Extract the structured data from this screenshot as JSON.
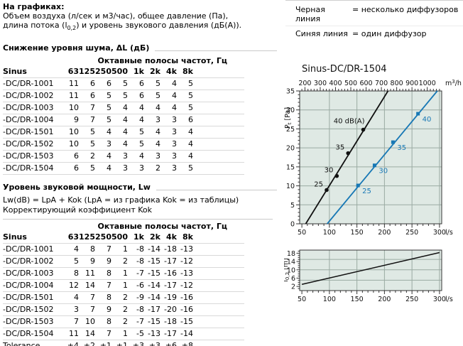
{
  "intro": {
    "title": "На графиках:",
    "line1": "Объем воздуха (л/сек и м3/час), общее давление (Па),",
    "line2_pre": "длина потока (l",
    "line2_sub": "0,2",
    "line2_post": ") и уровень звукового давления (дБ(А))."
  },
  "legend": {
    "rows": [
      {
        "label": "Черная линия",
        "value": "= несколько диффузоров"
      },
      {
        "label": "Синяя линия",
        "value": "= один диффузор"
      }
    ]
  },
  "tables": [
    {
      "title": "Снижение уровня шума, ΔL (дБ)",
      "octave_header": "Октавные полосы частот, Гц",
      "col_label": "Sinus",
      "columns": [
        "63",
        "125",
        "250",
        "500",
        "1k",
        "2k",
        "4k",
        "8k"
      ],
      "rows": [
        {
          "label": "-DC/DR-1001",
          "values": [
            11,
            6,
            6,
            5,
            6,
            5,
            4,
            5
          ]
        },
        {
          "label": "-DC/DR-1002",
          "values": [
            11,
            6,
            5,
            5,
            6,
            5,
            4,
            5
          ]
        },
        {
          "label": "-DC/DR-1003",
          "values": [
            10,
            7,
            5,
            4,
            4,
            4,
            4,
            5
          ]
        },
        {
          "label": "-DC/DR-1004",
          "values": [
            9,
            7,
            5,
            4,
            4,
            3,
            3,
            6
          ]
        },
        {
          "label": "-DC/DR-1501",
          "values": [
            10,
            5,
            4,
            4,
            5,
            4,
            3,
            4
          ]
        },
        {
          "label": "-DC/DR-1502",
          "values": [
            10,
            5,
            3,
            4,
            5,
            4,
            3,
            4
          ]
        },
        {
          "label": "-DC/DR-1503",
          "values": [
            6,
            2,
            4,
            3,
            4,
            3,
            3,
            4
          ]
        },
        {
          "label": "-DC/DR-1504",
          "values": [
            6,
            5,
            4,
            3,
            3,
            2,
            3,
            5
          ]
        }
      ]
    },
    {
      "title": "Уровень звуковой мощности, Lw",
      "note1": "Lw(dB) = LpA + Kok (LpA = из графика Kok = из таблицы)",
      "note2": "Корректирующий коэффициент Kok",
      "octave_header": "Октавные полосы частот, Гц",
      "col_label": "Sinus",
      "columns": [
        "63",
        "125",
        "250",
        "500",
        "1k",
        "2k",
        "4k",
        "8k"
      ],
      "rows": [
        {
          "label": "-DC/DR-1001",
          "values": [
            4,
            8,
            7,
            1,
            -8,
            -14,
            -18,
            -13
          ]
        },
        {
          "label": "-DC/DR-1002",
          "values": [
            5,
            9,
            9,
            2,
            -8,
            -15,
            -17,
            -12
          ]
        },
        {
          "label": "-DC/DR-1003",
          "values": [
            8,
            11,
            8,
            1,
            -7,
            -15,
            -16,
            -13
          ]
        },
        {
          "label": "-DC/DR-1004",
          "values": [
            12,
            14,
            7,
            1,
            -6,
            -14,
            -17,
            -12
          ]
        },
        {
          "label": "-DC/DR-1501",
          "values": [
            4,
            7,
            8,
            2,
            -9,
            -14,
            -19,
            -16
          ]
        },
        {
          "label": "-DC/DR-1502",
          "values": [
            3,
            7,
            9,
            2,
            -8,
            -17,
            -20,
            -16
          ]
        },
        {
          "label": "-DC/DR-1503",
          "values": [
            7,
            10,
            8,
            2,
            -7,
            -15,
            -18,
            -15
          ]
        },
        {
          "label": "-DC/DR-1504",
          "values": [
            11,
            14,
            7,
            1,
            -5,
            -13,
            -17,
            -14
          ]
        },
        {
          "label": "Tolerance",
          "values": [
            "±4",
            "±2",
            "±1",
            "±1",
            "±3",
            "±3",
            "±6",
            "±8"
          ]
        }
      ]
    }
  ],
  "colors": {
    "plot_bg": "#dfe9e4",
    "grid": "#9aaaa2",
    "axis": "#333333",
    "line_black": "#111111",
    "line_blue": "#1878b5"
  },
  "chart_data": [
    {
      "type": "line",
      "title": "Sinus-DC/DR-1504",
      "x_axis_bottom": {
        "label": "l/s",
        "range": [
          46,
          304
        ],
        "ticks": [
          50,
          100,
          150,
          200,
          250,
          300
        ],
        "minor_step": 10
      },
      "x_axis_top": {
        "label": "m3/h",
        "label_parts": {
          "base": "m",
          "sup": "3",
          "rest": "/h"
        },
        "ticks": [
          200,
          300,
          400,
          500,
          600,
          700,
          800,
          900,
          1000
        ],
        "minor_step": 20,
        "note": "top axis = bottom axis × 3.6"
      },
      "y_axis": {
        "label": "Pt [Pa]",
        "label_parts": {
          "base": "P",
          "sub": "t",
          "rest": " [Pa]"
        },
        "range": [
          0,
          35
        ],
        "ticks": [
          0,
          5,
          10,
          15,
          20,
          25,
          30,
          35
        ],
        "minor_step": 1
      },
      "grid_x": [
        100,
        150,
        200,
        250,
        300
      ],
      "grid_y": [
        5,
        10,
        15,
        20,
        25,
        30
      ],
      "point_labels_unit": "dB(A)",
      "series": [
        {
          "name": "несколько диффузоров",
          "color": "#111111",
          "marker": "circle",
          "label_side": "left",
          "line": [
            [
              57,
              0
            ],
            [
              206.5,
              35
            ]
          ],
          "points": [
            {
              "x": 95,
              "y": 8.9,
              "label": "25"
            },
            {
              "x": 113.5,
              "y": 12.6,
              "label": "30"
            },
            {
              "x": 134,
              "y": 18.6,
              "label": "35"
            },
            {
              "x": 161.5,
              "y": 24.8,
              "label": "40 dB(A)",
              "dx": 2,
              "dy": -9
            }
          ]
        },
        {
          "name": "один диффузор",
          "color": "#1878b5",
          "marker": "square",
          "label_side": "right",
          "line": [
            [
              96,
              0
            ],
            [
              296,
              35
            ]
          ],
          "points": [
            {
              "x": 152,
              "y": 10.1,
              "label": "25"
            },
            {
              "x": 182,
              "y": 15.4,
              "label": "30"
            },
            {
              "x": 215.5,
              "y": 21.5,
              "label": "35"
            },
            {
              "x": 261,
              "y": 29,
              "label": "40"
            }
          ]
        }
      ]
    },
    {
      "type": "line",
      "title": "",
      "x_axis_bottom": {
        "label": "l/s",
        "range": [
          46,
          304
        ],
        "ticks": [
          50,
          100,
          150,
          200,
          250,
          300
        ],
        "minor_step": 10
      },
      "y_axis": {
        "label": "l0,2 [m]",
        "label_parts": {
          "base": "l",
          "sub": "0,2",
          "rest": " [m]"
        },
        "range": [
          0,
          19.5
        ],
        "ticks": [
          2,
          6,
          10,
          14,
          18
        ],
        "minor_step": 1
      },
      "grid_x": [
        100,
        150,
        200,
        250,
        300
      ],
      "grid_y": [
        5,
        10,
        15
      ],
      "series": [
        {
          "name": "длина потока l0,2",
          "color": "#111111",
          "line": [
            [
              50,
              3
            ],
            [
              300,
              18.3
            ]
          ]
        }
      ]
    }
  ]
}
